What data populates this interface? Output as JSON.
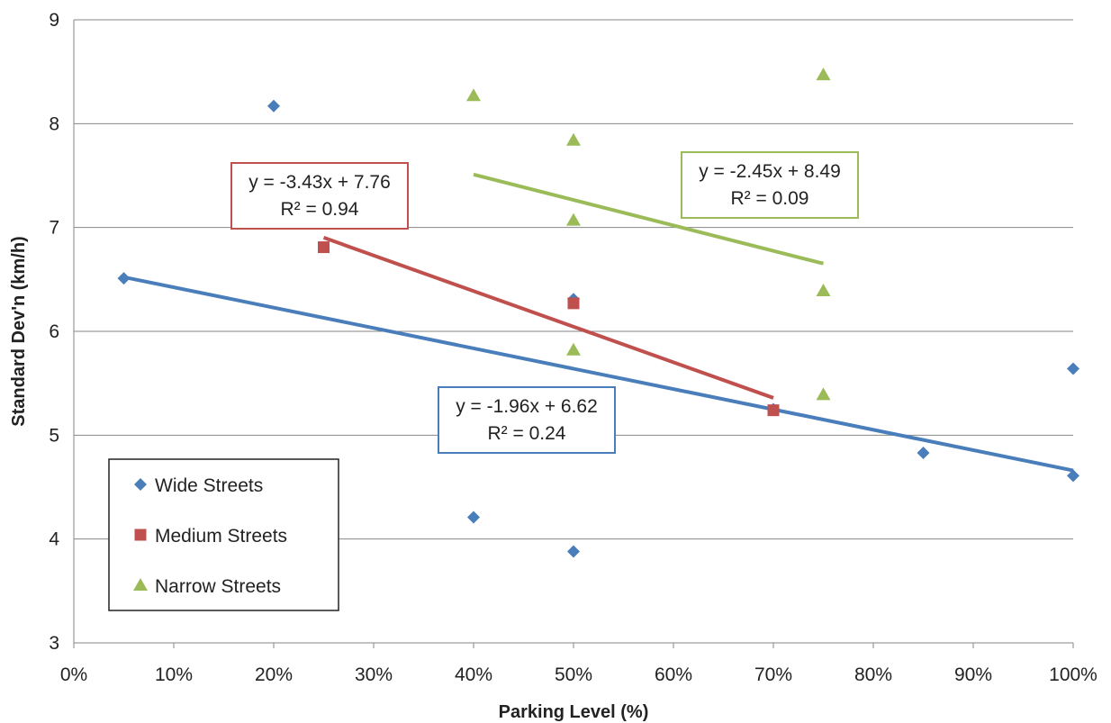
{
  "chart_data": {
    "type": "scatter",
    "xlabel": "Parking Level (%)",
    "ylabel": "Standard Dev'n (km/h)",
    "xlim": [
      0,
      1
    ],
    "ylim": [
      3,
      9
    ],
    "x_ticks": [
      "0%",
      "10%",
      "20%",
      "30%",
      "40%",
      "50%",
      "60%",
      "70%",
      "80%",
      "90%",
      "100%"
    ],
    "y_ticks": [
      "3",
      "4",
      "5",
      "6",
      "7",
      "8",
      "9"
    ],
    "grid": "horizontal",
    "legend": {
      "placement": "bottom-left"
    },
    "series": [
      {
        "name": "Wide Streets",
        "color": "#4a7ebb",
        "marker": "diamond",
        "points": [
          {
            "x": 0.05,
            "y": 6.51
          },
          {
            "x": 0.2,
            "y": 8.17
          },
          {
            "x": 0.4,
            "y": 4.21
          },
          {
            "x": 0.5,
            "y": 6.31
          },
          {
            "x": 0.5,
            "y": 3.88
          },
          {
            "x": 0.7,
            "y": 5.25
          },
          {
            "x": 0.85,
            "y": 4.83
          },
          {
            "x": 1.0,
            "y": 5.64
          },
          {
            "x": 1.0,
            "y": 4.61
          }
        ],
        "trendline": {
          "slope": -1.96,
          "intercept": 6.62,
          "x_range": [
            0.05,
            1.0
          ]
        },
        "equation": {
          "line1": "y = -1.96x + 6.62",
          "line2": "R² = 0.24"
        }
      },
      {
        "name": "Medium Streets",
        "color": "#c0504d",
        "marker": "square",
        "points": [
          {
            "x": 0.25,
            "y": 6.81
          },
          {
            "x": 0.5,
            "y": 6.27
          },
          {
            "x": 0.7,
            "y": 5.24
          }
        ],
        "trendline": {
          "slope": -3.43,
          "intercept": 7.76,
          "x_range": [
            0.25,
            0.7
          ]
        },
        "equation": {
          "line1": "y = -3.43x + 7.76",
          "line2": "R² = 0.94"
        }
      },
      {
        "name": "Narrow Streets",
        "color": "#9bbb59",
        "marker": "triangle",
        "points": [
          {
            "x": 0.4,
            "y": 8.27
          },
          {
            "x": 0.5,
            "y": 7.84
          },
          {
            "x": 0.5,
            "y": 7.07
          },
          {
            "x": 0.5,
            "y": 5.82
          },
          {
            "x": 0.75,
            "y": 8.47
          },
          {
            "x": 0.75,
            "y": 6.39
          },
          {
            "x": 0.75,
            "y": 5.39
          }
        ],
        "trendline": {
          "slope": -2.45,
          "intercept": 8.49,
          "x_range": [
            0.4,
            0.75
          ]
        },
        "equation": {
          "line1": "y = -2.45x + 8.49",
          "line2": "R² = 0.09"
        }
      }
    ]
  }
}
